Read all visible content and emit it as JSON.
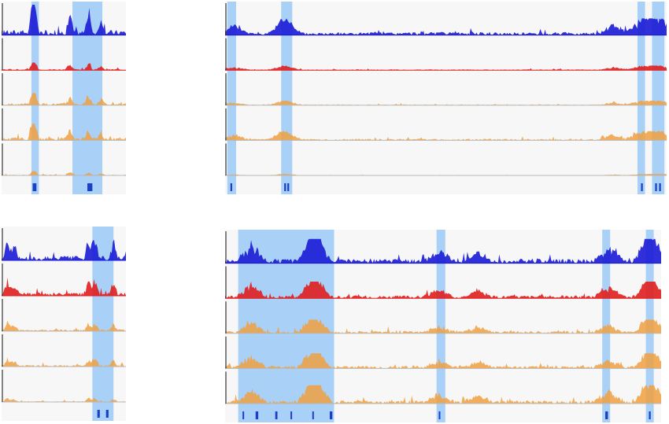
{
  "colors": {
    "background": "#ffffff",
    "panel": "#f7f7f7",
    "highlight": "#8fc3f5",
    "track_blue": "#1a1ad6",
    "track_red": "#e01e1e",
    "track_orange": "#f0a040",
    "baseline": "#b8b8b8",
    "marker": "#1a3fc8"
  },
  "panels": [
    {
      "id": "top-left",
      "tracks": [
        "blue",
        "red",
        "orange",
        "orange",
        "orange"
      ],
      "track_heights": [
        1.0,
        0.25,
        0.4,
        0.55,
        0.15
      ],
      "peaks": [
        [
          0.25,
          1.0
        ],
        [
          0.27,
          0.9
        ],
        [
          0.55,
          0.7
        ],
        [
          0.7,
          0.8
        ],
        [
          0.8,
          0.5
        ]
      ],
      "highlights": [
        [
          0.24,
          0.3
        ],
        [
          0.57,
          0.81
        ]
      ],
      "markers": [
        [
          0.25,
          0.28
        ],
        [
          0.69,
          0.73
        ]
      ]
    },
    {
      "id": "top-right",
      "tracks": [
        "blue",
        "red",
        "orange",
        "orange",
        "orange"
      ],
      "track_heights": [
        0.55,
        0.15,
        0.15,
        0.3,
        0.05
      ],
      "peaks": [
        [
          0.02,
          0.6
        ],
        [
          0.13,
          0.7
        ],
        [
          0.14,
          0.55
        ],
        [
          0.88,
          0.6
        ],
        [
          0.94,
          0.9
        ],
        [
          0.97,
          1.0
        ],
        [
          0.99,
          0.7
        ]
      ],
      "highlights": [
        [
          0.005,
          0.025
        ],
        [
          0.127,
          0.152
        ],
        [
          0.934,
          0.951
        ],
        [
          0.967,
          0.995
        ]
      ],
      "markers": [
        [
          0.012,
          0.016
        ],
        [
          0.134,
          0.138
        ],
        [
          0.141,
          0.145
        ],
        [
          0.942,
          0.946
        ],
        [
          0.974,
          0.978
        ],
        [
          0.983,
          0.987
        ]
      ]
    },
    {
      "id": "bottom-left",
      "tracks": [
        "blue",
        "red",
        "orange",
        "orange",
        "orange"
      ],
      "track_heights": [
        0.85,
        0.6,
        0.35,
        0.3,
        0.15
      ],
      "peaks": [
        [
          0.05,
          0.9
        ],
        [
          0.1,
          0.7
        ],
        [
          0.7,
          0.8
        ],
        [
          0.75,
          1.0
        ],
        [
          0.9,
          0.7
        ]
      ],
      "highlights": [
        [
          0.73,
          0.9
        ]
      ],
      "markers": [
        [
          0.77,
          0.79
        ],
        [
          0.84,
          0.86
        ]
      ]
    },
    {
      "id": "bottom-right",
      "tracks": [
        "blue",
        "red",
        "orange",
        "orange",
        "orange"
      ],
      "track_heights": [
        0.8,
        0.55,
        0.45,
        0.5,
        0.6
      ],
      "peaks": [
        [
          0.06,
          0.8
        ],
        [
          0.2,
          0.9
        ],
        [
          0.21,
          1.0
        ],
        [
          0.49,
          0.5
        ],
        [
          0.88,
          0.6
        ],
        [
          0.97,
          0.7
        ],
        [
          0.98,
          1.0
        ],
        [
          0.58,
          0.45
        ]
      ],
      "highlights": [
        [
          0.03,
          0.25
        ],
        [
          0.485,
          0.505
        ],
        [
          0.865,
          0.883
        ],
        [
          0.965,
          0.983
        ]
      ],
      "markers": [
        [
          0.04,
          0.043
        ],
        [
          0.07,
          0.076
        ],
        [
          0.115,
          0.12
        ],
        [
          0.15,
          0.153
        ],
        [
          0.2,
          0.203
        ],
        [
          0.24,
          0.246
        ],
        [
          0.49,
          0.493
        ],
        [
          0.872,
          0.878
        ],
        [
          0.972,
          0.976
        ]
      ]
    }
  ]
}
